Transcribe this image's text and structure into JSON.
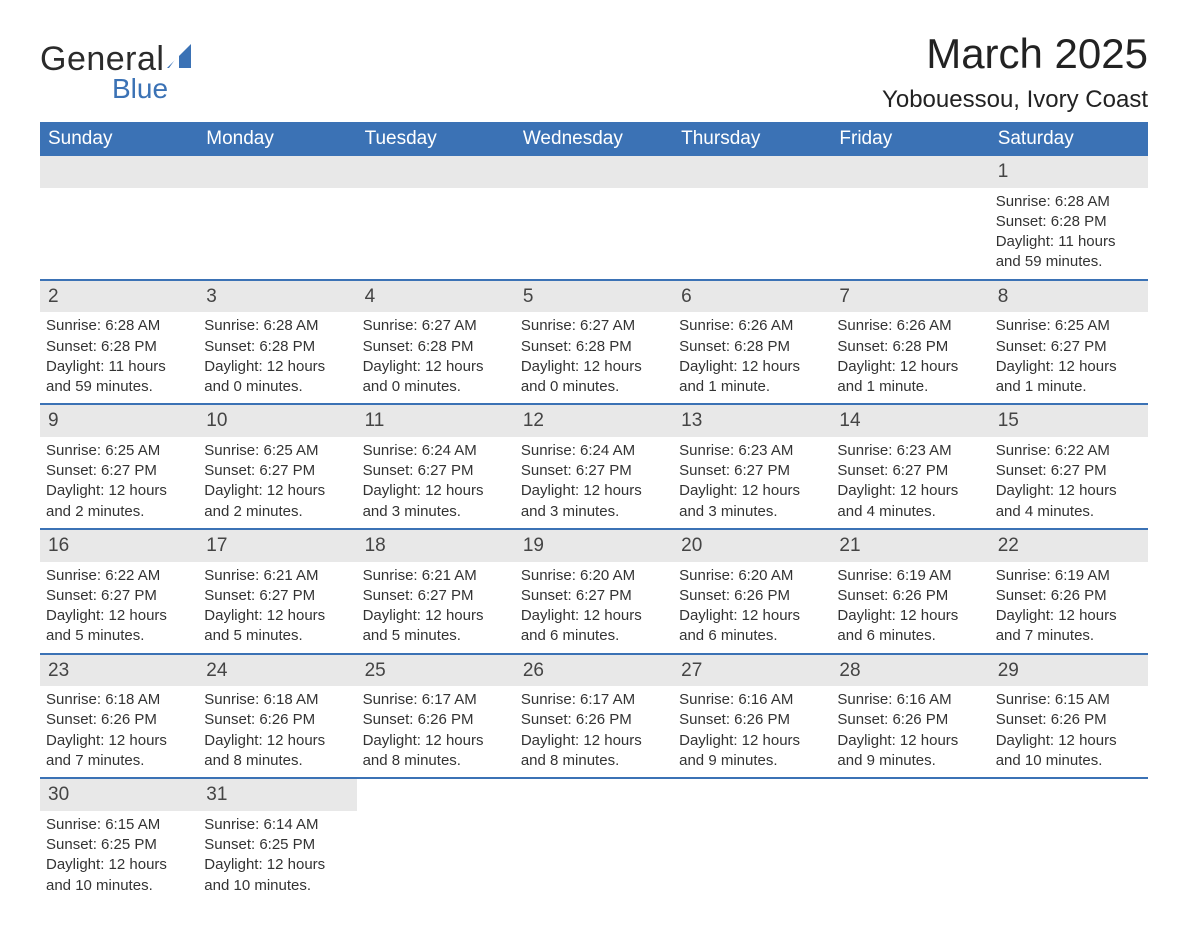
{
  "brand": {
    "word1": "General",
    "word2": "Blue",
    "accent_color": "#3b72b5"
  },
  "title": "March 2025",
  "location": "Yobouessou, Ivory Coast",
  "colors": {
    "header_bg": "#3b72b5",
    "header_text": "#ffffff",
    "band_bg": "#e8e8e8",
    "row_border": "#3b72b5",
    "text": "#2b2b2b"
  },
  "day_headers": [
    "Sunday",
    "Monday",
    "Tuesday",
    "Wednesday",
    "Thursday",
    "Friday",
    "Saturday"
  ],
  "weeks": [
    [
      null,
      null,
      null,
      null,
      null,
      null,
      {
        "n": "1",
        "sunrise": "Sunrise: 6:28 AM",
        "sunset": "Sunset: 6:28 PM",
        "daylight": "Daylight: 11 hours and 59 minutes."
      }
    ],
    [
      {
        "n": "2",
        "sunrise": "Sunrise: 6:28 AM",
        "sunset": "Sunset: 6:28 PM",
        "daylight": "Daylight: 11 hours and 59 minutes."
      },
      {
        "n": "3",
        "sunrise": "Sunrise: 6:28 AM",
        "sunset": "Sunset: 6:28 PM",
        "daylight": "Daylight: 12 hours and 0 minutes."
      },
      {
        "n": "4",
        "sunrise": "Sunrise: 6:27 AM",
        "sunset": "Sunset: 6:28 PM",
        "daylight": "Daylight: 12 hours and 0 minutes."
      },
      {
        "n": "5",
        "sunrise": "Sunrise: 6:27 AM",
        "sunset": "Sunset: 6:28 PM",
        "daylight": "Daylight: 12 hours and 0 minutes."
      },
      {
        "n": "6",
        "sunrise": "Sunrise: 6:26 AM",
        "sunset": "Sunset: 6:28 PM",
        "daylight": "Daylight: 12 hours and 1 minute."
      },
      {
        "n": "7",
        "sunrise": "Sunrise: 6:26 AM",
        "sunset": "Sunset: 6:28 PM",
        "daylight": "Daylight: 12 hours and 1 minute."
      },
      {
        "n": "8",
        "sunrise": "Sunrise: 6:25 AM",
        "sunset": "Sunset: 6:27 PM",
        "daylight": "Daylight: 12 hours and 1 minute."
      }
    ],
    [
      {
        "n": "9",
        "sunrise": "Sunrise: 6:25 AM",
        "sunset": "Sunset: 6:27 PM",
        "daylight": "Daylight: 12 hours and 2 minutes."
      },
      {
        "n": "10",
        "sunrise": "Sunrise: 6:25 AM",
        "sunset": "Sunset: 6:27 PM",
        "daylight": "Daylight: 12 hours and 2 minutes."
      },
      {
        "n": "11",
        "sunrise": "Sunrise: 6:24 AM",
        "sunset": "Sunset: 6:27 PM",
        "daylight": "Daylight: 12 hours and 3 minutes."
      },
      {
        "n": "12",
        "sunrise": "Sunrise: 6:24 AM",
        "sunset": "Sunset: 6:27 PM",
        "daylight": "Daylight: 12 hours and 3 minutes."
      },
      {
        "n": "13",
        "sunrise": "Sunrise: 6:23 AM",
        "sunset": "Sunset: 6:27 PM",
        "daylight": "Daylight: 12 hours and 3 minutes."
      },
      {
        "n": "14",
        "sunrise": "Sunrise: 6:23 AM",
        "sunset": "Sunset: 6:27 PM",
        "daylight": "Daylight: 12 hours and 4 minutes."
      },
      {
        "n": "15",
        "sunrise": "Sunrise: 6:22 AM",
        "sunset": "Sunset: 6:27 PM",
        "daylight": "Daylight: 12 hours and 4 minutes."
      }
    ],
    [
      {
        "n": "16",
        "sunrise": "Sunrise: 6:22 AM",
        "sunset": "Sunset: 6:27 PM",
        "daylight": "Daylight: 12 hours and 5 minutes."
      },
      {
        "n": "17",
        "sunrise": "Sunrise: 6:21 AM",
        "sunset": "Sunset: 6:27 PM",
        "daylight": "Daylight: 12 hours and 5 minutes."
      },
      {
        "n": "18",
        "sunrise": "Sunrise: 6:21 AM",
        "sunset": "Sunset: 6:27 PM",
        "daylight": "Daylight: 12 hours and 5 minutes."
      },
      {
        "n": "19",
        "sunrise": "Sunrise: 6:20 AM",
        "sunset": "Sunset: 6:27 PM",
        "daylight": "Daylight: 12 hours and 6 minutes."
      },
      {
        "n": "20",
        "sunrise": "Sunrise: 6:20 AM",
        "sunset": "Sunset: 6:26 PM",
        "daylight": "Daylight: 12 hours and 6 minutes."
      },
      {
        "n": "21",
        "sunrise": "Sunrise: 6:19 AM",
        "sunset": "Sunset: 6:26 PM",
        "daylight": "Daylight: 12 hours and 6 minutes."
      },
      {
        "n": "22",
        "sunrise": "Sunrise: 6:19 AM",
        "sunset": "Sunset: 6:26 PM",
        "daylight": "Daylight: 12 hours and 7 minutes."
      }
    ],
    [
      {
        "n": "23",
        "sunrise": "Sunrise: 6:18 AM",
        "sunset": "Sunset: 6:26 PM",
        "daylight": "Daylight: 12 hours and 7 minutes."
      },
      {
        "n": "24",
        "sunrise": "Sunrise: 6:18 AM",
        "sunset": "Sunset: 6:26 PM",
        "daylight": "Daylight: 12 hours and 8 minutes."
      },
      {
        "n": "25",
        "sunrise": "Sunrise: 6:17 AM",
        "sunset": "Sunset: 6:26 PM",
        "daylight": "Daylight: 12 hours and 8 minutes."
      },
      {
        "n": "26",
        "sunrise": "Sunrise: 6:17 AM",
        "sunset": "Sunset: 6:26 PM",
        "daylight": "Daylight: 12 hours and 8 minutes."
      },
      {
        "n": "27",
        "sunrise": "Sunrise: 6:16 AM",
        "sunset": "Sunset: 6:26 PM",
        "daylight": "Daylight: 12 hours and 9 minutes."
      },
      {
        "n": "28",
        "sunrise": "Sunrise: 6:16 AM",
        "sunset": "Sunset: 6:26 PM",
        "daylight": "Daylight: 12 hours and 9 minutes."
      },
      {
        "n": "29",
        "sunrise": "Sunrise: 6:15 AM",
        "sunset": "Sunset: 6:26 PM",
        "daylight": "Daylight: 12 hours and 10 minutes."
      }
    ],
    [
      {
        "n": "30",
        "sunrise": "Sunrise: 6:15 AM",
        "sunset": "Sunset: 6:25 PM",
        "daylight": "Daylight: 12 hours and 10 minutes."
      },
      {
        "n": "31",
        "sunrise": "Sunrise: 6:14 AM",
        "sunset": "Sunset: 6:25 PM",
        "daylight": "Daylight: 12 hours and 10 minutes."
      },
      null,
      null,
      null,
      null,
      null
    ]
  ]
}
